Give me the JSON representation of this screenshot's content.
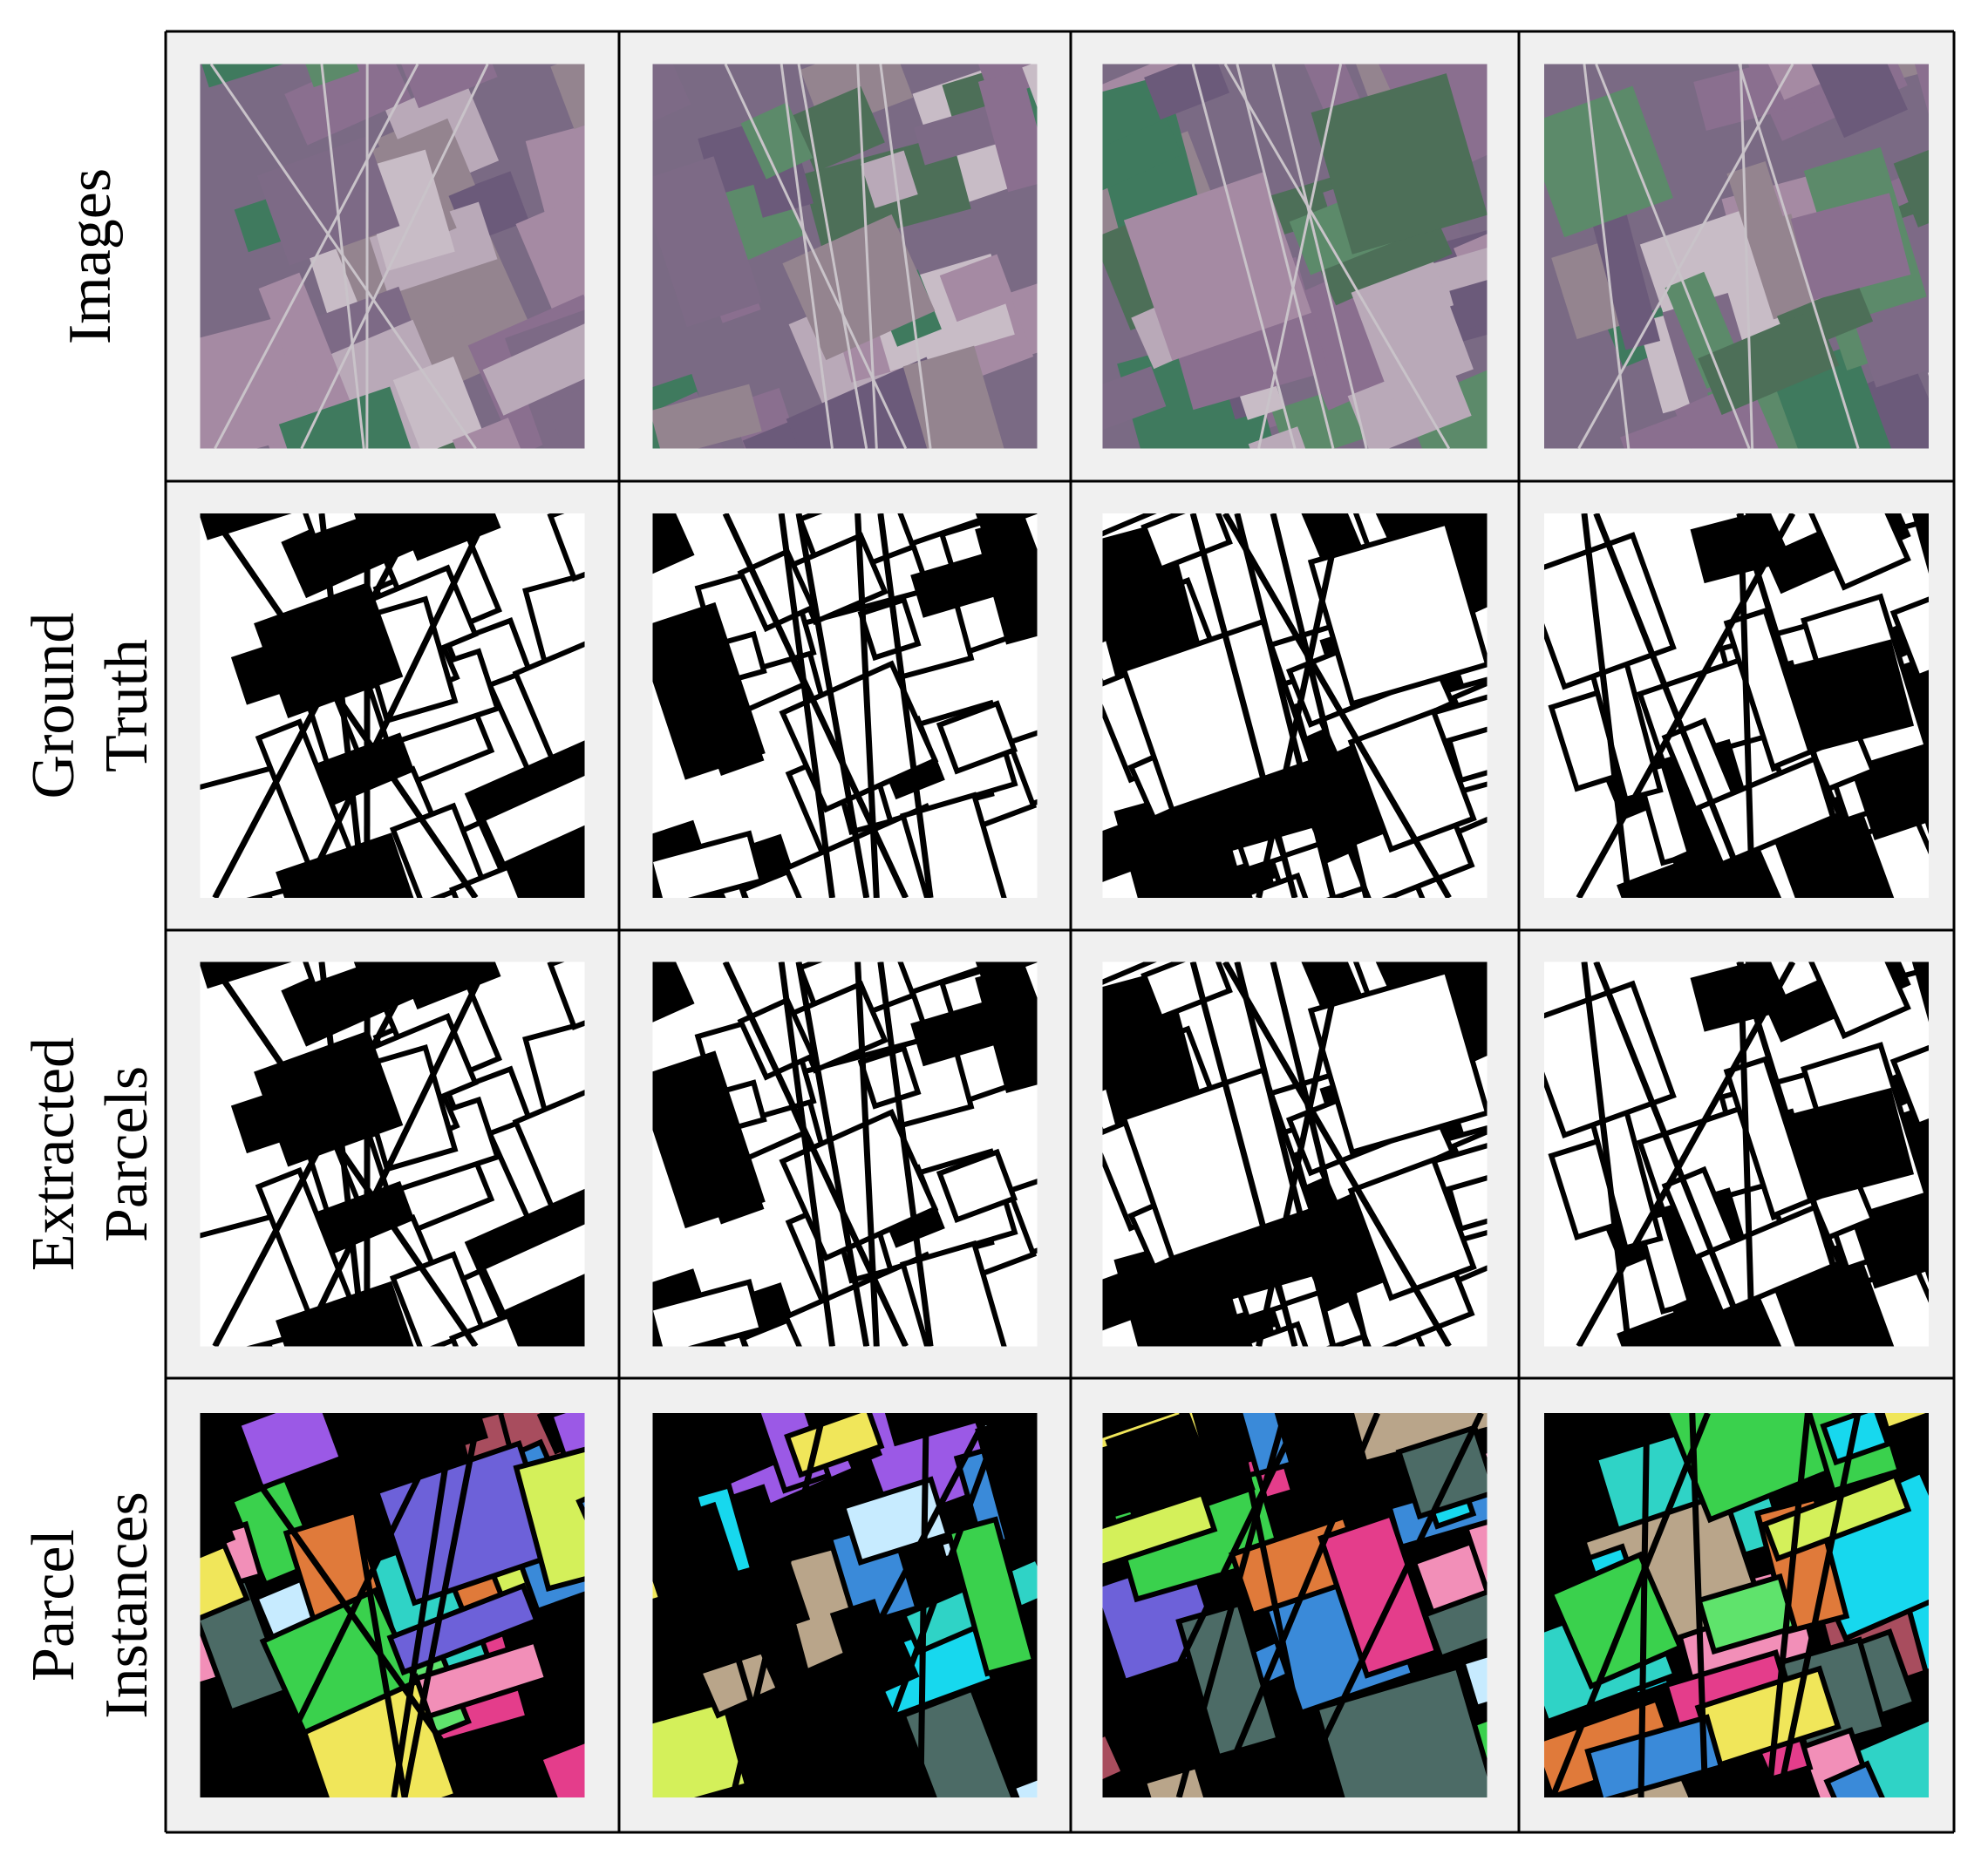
{
  "rows": [
    {
      "label_lines": [
        "Images"
      ]
    },
    {
      "label_lines": [
        "Ground",
        "Truth"
      ]
    },
    {
      "label_lines": [
        "Extracted",
        "Parcels"
      ]
    },
    {
      "label_lines": [
        "Parcel",
        "Instances"
      ]
    }
  ]
}
